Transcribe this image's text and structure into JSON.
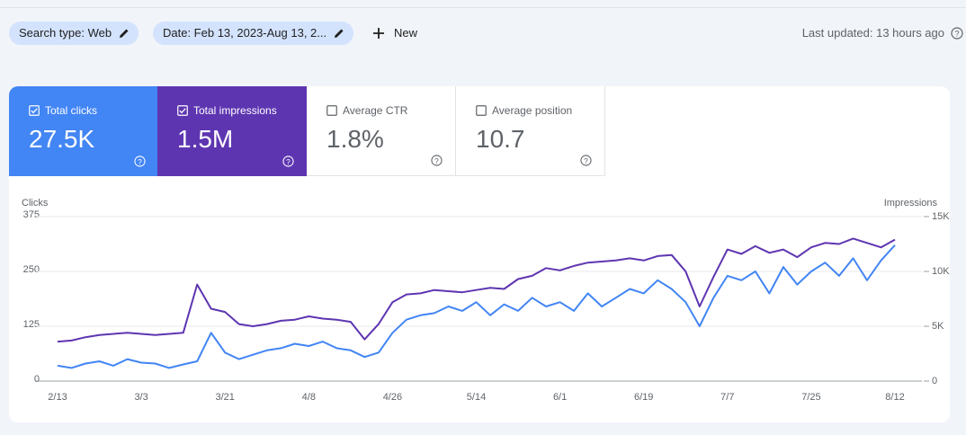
{
  "toolbar": {
    "chips": [
      "Search type: Web",
      "Date: Feb 13, 2023-Aug 13, 2..."
    ],
    "new_button": "New",
    "last_updated": "Last updated: 13 hours ago"
  },
  "metrics": [
    {
      "label": "Total clicks",
      "value": "27.5K"
    },
    {
      "label": "Total impressions",
      "value": "1.5M"
    },
    {
      "label": "Average CTR",
      "value": "1.8%"
    },
    {
      "label": "Average position",
      "value": "10.7"
    }
  ],
  "chart_data": {
    "type": "line",
    "categories": [
      "2/13",
      null,
      null,
      null,
      null,
      null,
      "3/3",
      null,
      null,
      null,
      null,
      null,
      "3/21",
      null,
      null,
      null,
      null,
      null,
      "4/8",
      null,
      null,
      null,
      null,
      null,
      "4/26",
      null,
      null,
      null,
      null,
      null,
      "5/14",
      null,
      null,
      null,
      null,
      null,
      "6/1",
      null,
      null,
      null,
      null,
      null,
      "6/19",
      null,
      null,
      null,
      null,
      null,
      "7/7",
      null,
      null,
      null,
      null,
      null,
      "7/25",
      null,
      null,
      null,
      null,
      null,
      "8/12"
    ],
    "series": [
      {
        "name": "Clicks",
        "color": "#4285f4",
        "values": [
          35,
          30,
          40,
          45,
          35,
          50,
          42,
          40,
          30,
          38,
          45,
          110,
          65,
          50,
          60,
          70,
          75,
          85,
          80,
          90,
          75,
          70,
          55,
          65,
          110,
          140,
          150,
          155,
          170,
          160,
          180,
          150,
          175,
          160,
          190,
          170,
          180,
          160,
          200,
          170,
          190,
          210,
          200,
          230,
          210,
          180,
          125,
          190,
          240,
          230,
          250,
          200,
          260,
          220,
          250,
          270,
          240,
          280,
          230,
          275,
          310
        ]
      },
      {
        "name": "Impressions",
        "color": "#5e35b1",
        "axis": "y2",
        "values": [
          3600,
          3700,
          4000,
          4200,
          4300,
          4400,
          4300,
          4200,
          4300,
          4400,
          8800,
          6600,
          6300,
          5200,
          5000,
          5200,
          5500,
          5600,
          5900,
          5700,
          5600,
          5400,
          3800,
          5200,
          7200,
          7900,
          8000,
          8300,
          8200,
          8100,
          8300,
          8500,
          8400,
          9300,
          9600,
          10300,
          10100,
          10500,
          10800,
          10900,
          11000,
          11200,
          11000,
          11400,
          11500,
          10000,
          6800,
          9500,
          12000,
          11600,
          12300,
          11700,
          12000,
          11300,
          12200,
          12600,
          12500,
          13000,
          12600,
          12200,
          12900
        ]
      }
    ],
    "ylim": [
      0,
      375
    ],
    "yticks": [
      0,
      125,
      250,
      375
    ],
    "y2lim": [
      0,
      15000
    ],
    "y2ticks": [
      0,
      {
        "value": 5000,
        "label": "5K"
      },
      {
        "value": 10000,
        "label": "10K"
      },
      {
        "value": 15000,
        "label": "15K"
      }
    ],
    "grid": true
  }
}
